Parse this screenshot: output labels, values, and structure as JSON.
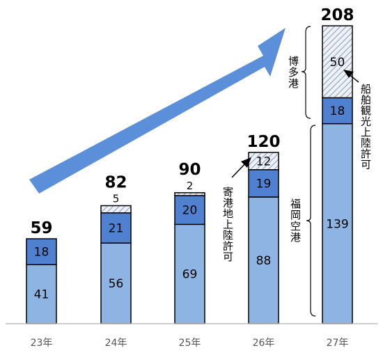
{
  "chart_data": {
    "type": "bar",
    "stacked": true,
    "categories": [
      "23年",
      "24年",
      "25年",
      "26年",
      "27年"
    ],
    "totals": [
      59,
      82,
      90,
      120,
      208
    ],
    "series": [
      {
        "values": [
          41,
          56,
          69,
          88,
          139
        ],
        "color": "#8eb4e3",
        "pattern": "solid"
      },
      {
        "values": [
          18,
          21,
          20,
          19,
          18
        ],
        "color": "#4f81d0",
        "pattern": "solid"
      },
      {
        "values": [
          0,
          5,
          2,
          12,
          50
        ],
        "color": "#dde5f0",
        "pattern": "hatched"
      }
    ],
    "annotations": {
      "hakata_port": "博多港",
      "fukuoka_airport": "福岡空港",
      "port_call_landing": "寄港地上陸許可",
      "cruise_landing": "船舶観光上陸許可"
    },
    "arrow_color": "#5b8fd9",
    "ylim": [
      0,
      208
    ]
  }
}
